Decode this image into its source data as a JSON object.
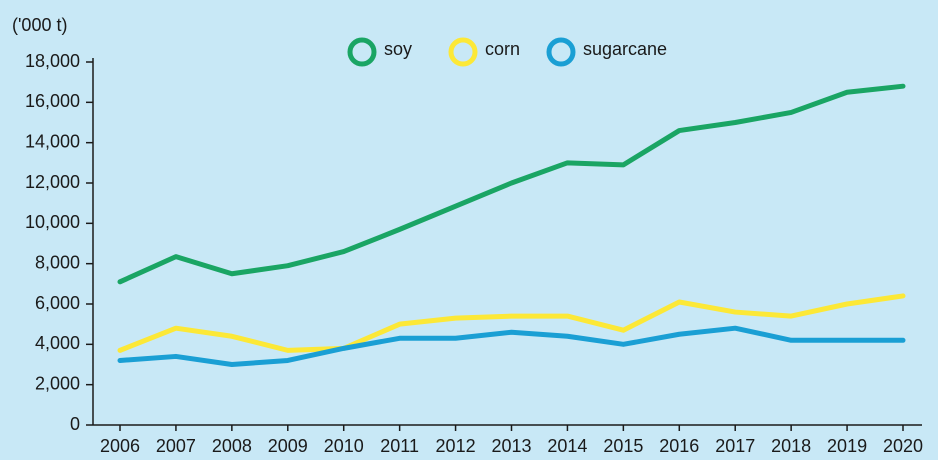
{
  "chart_data": {
    "type": "line",
    "y_axis_label": "('000 t)",
    "categories": [
      "2006",
      "2007",
      "2008",
      "2009",
      "2010",
      "2011",
      "2012",
      "2013",
      "2014",
      "2015",
      "2016",
      "2017",
      "2018",
      "2019",
      "2020"
    ],
    "series": [
      {
        "name": "soy",
        "color": "#1aa564",
        "values": [
          7100,
          8350,
          7500,
          7900,
          8600,
          9700,
          10850,
          12000,
          13000,
          12900,
          14600,
          15000,
          15500,
          16500,
          16800
        ]
      },
      {
        "name": "corn",
        "color": "#fce837",
        "values": [
          3700,
          4800,
          4400,
          3700,
          3800,
          5000,
          5300,
          5400,
          5400,
          4700,
          6100,
          5600,
          5400,
          6000,
          6400
        ]
      },
      {
        "name": "sugarcane",
        "color": "#1a9fd4",
        "values": [
          3200,
          3400,
          3000,
          3200,
          3800,
          4300,
          4300,
          4600,
          4400,
          4000,
          4500,
          4800,
          4200,
          4200,
          4200
        ]
      }
    ],
    "ylim": [
      0,
      18000
    ],
    "yticks": [
      0,
      {
        "value": 2000,
        "label": "2,000"
      },
      {
        "value": 4000,
        "label": "4,000"
      },
      {
        "value": 6000,
        "label": "6,000"
      },
      {
        "value": 8000,
        "label": "8,000"
      },
      {
        "value": 10000,
        "label": "10,000"
      },
      {
        "value": 12000,
        "label": "12,000"
      },
      {
        "value": 14000,
        "label": "14,000"
      },
      {
        "value": 16000,
        "label": "16,000"
      },
      {
        "value": 18000,
        "label": "18,000"
      }
    ],
    "legend": "top"
  }
}
